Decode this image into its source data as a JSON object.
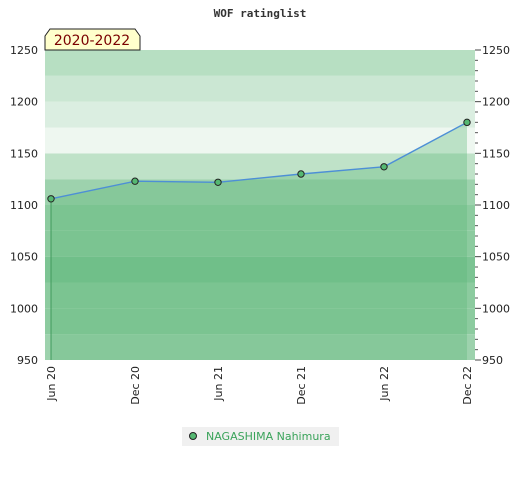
{
  "chart_data": {
    "type": "line",
    "title": "WOF ratinglist",
    "period_badge": "2020-2022",
    "x": [
      "Jun 20",
      "Dec 20",
      "Jun 21",
      "Dec 21",
      "Jun 22",
      "Dec 22"
    ],
    "series": [
      {
        "name": "NAGASHIMA Nahimura",
        "values": [
          1106,
          1123,
          1122,
          1130,
          1137,
          1180
        ]
      }
    ],
    "ylim": [
      950,
      1250
    ],
    "yticks": [
      950,
      1000,
      1050,
      1100,
      1150,
      1200,
      1250
    ],
    "ytick_labels": [
      "950",
      "1000",
      "1050",
      "1100",
      "1150",
      "1200",
      "1250"
    ],
    "xlabel": "",
    "ylabel": "",
    "grid": false,
    "legend_position": "bottom-center",
    "colors": {
      "line": "#4d8fd6",
      "marker_fill": "#55b872",
      "area_fill": "#5cb878",
      "band_light": "#eef7f0",
      "band_mid": "#bfe2c8",
      "band_dark": "#7cc493",
      "badge_bg": "#ffffcc",
      "legend_text": "#3aa35a"
    }
  }
}
